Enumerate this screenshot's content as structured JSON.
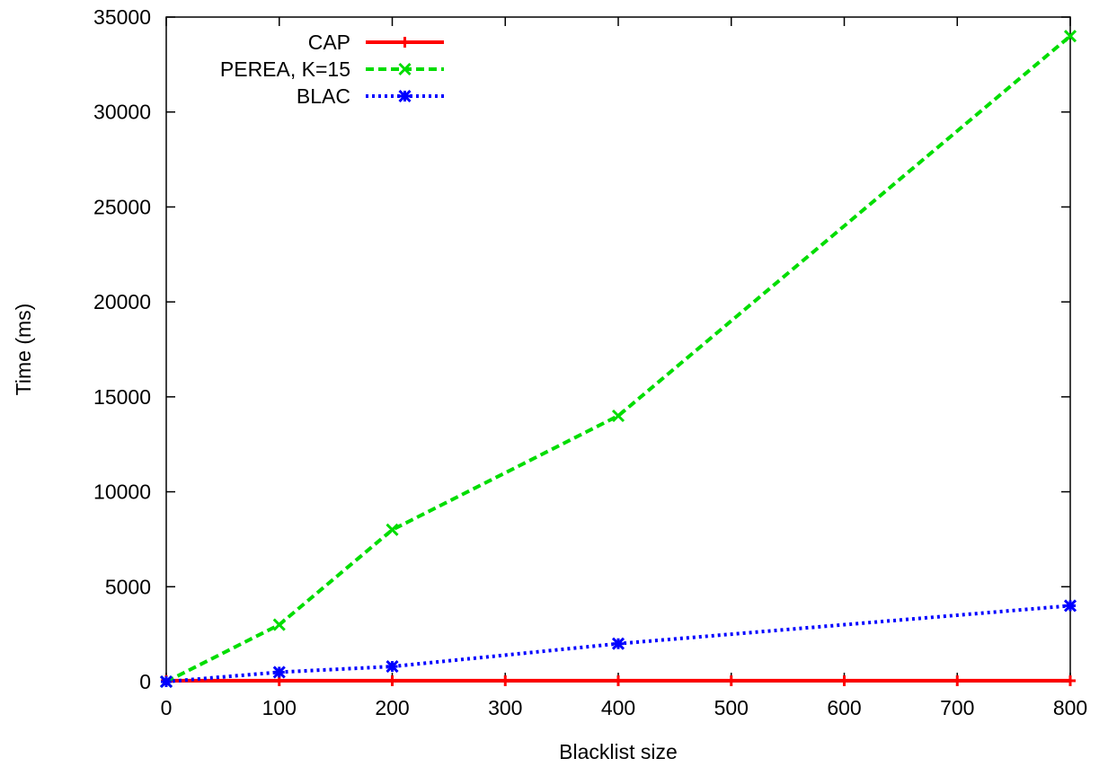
{
  "chart_data": {
    "type": "line",
    "title": "",
    "xlabel": "Blacklist size",
    "ylabel": "Time (ms)",
    "xlim": [
      0,
      800
    ],
    "ylim": [
      0,
      35000
    ],
    "xticks": [
      0,
      100,
      200,
      300,
      400,
      500,
      600,
      700,
      800
    ],
    "yticks": [
      0,
      5000,
      10000,
      15000,
      20000,
      25000,
      30000,
      35000
    ],
    "grid": false,
    "legend": "top-left",
    "series": [
      {
        "name": "CAP",
        "color": "#ff0000",
        "dash": "solid",
        "marker": "plus",
        "x": [
          0,
          100,
          200,
          300,
          400,
          500,
          600,
          700,
          800
        ],
        "y": [
          50,
          50,
          50,
          50,
          50,
          50,
          50,
          50,
          50
        ]
      },
      {
        "name": "PEREA, K=15",
        "color": "#00dd00",
        "dash": "dashed",
        "marker": "cross",
        "x": [
          0,
          100,
          200,
          400,
          800
        ],
        "y": [
          0,
          3000,
          8000,
          14000,
          34000
        ]
      },
      {
        "name": "BLAC",
        "color": "#0000ff",
        "dash": "dotted",
        "marker": "star",
        "x": [
          0,
          100,
          200,
          400,
          800
        ],
        "y": [
          0,
          500,
          800,
          2000,
          4000
        ]
      }
    ]
  }
}
